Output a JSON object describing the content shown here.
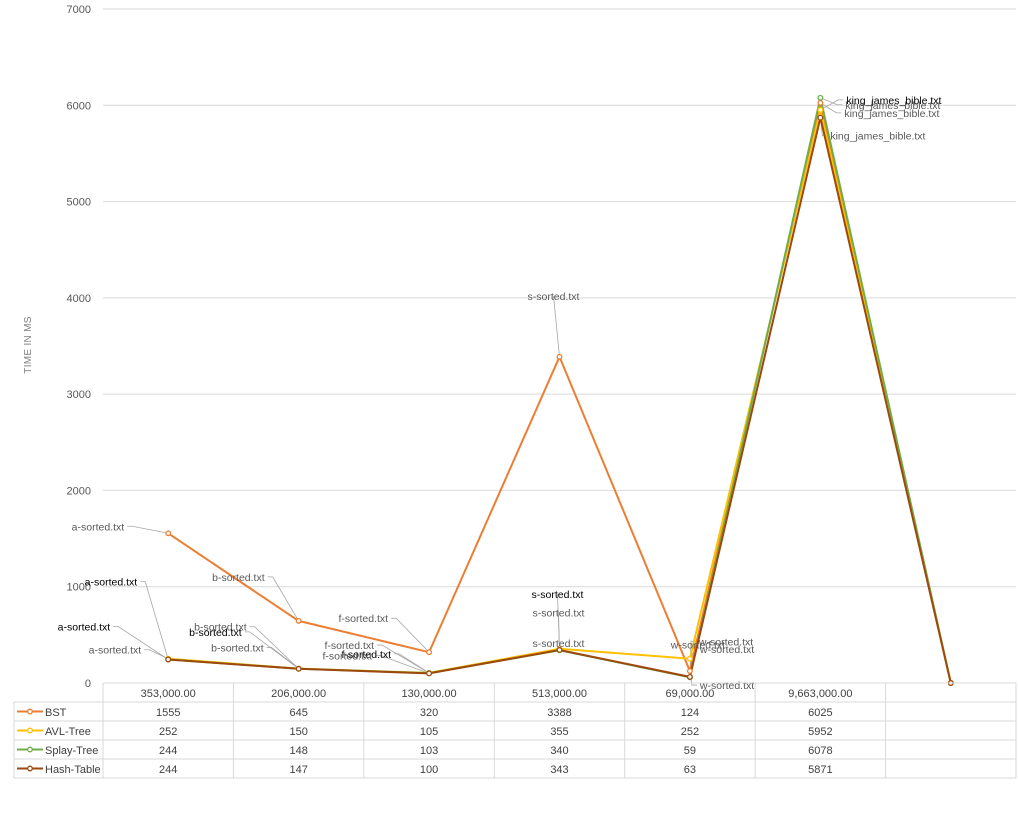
{
  "chart_data": {
    "type": "line",
    "title": "",
    "ylabel": "TIME IN MS",
    "xlabel": "",
    "ylim": [
      0,
      7000
    ],
    "yticks": [
      0,
      1000,
      2000,
      3000,
      4000,
      5000,
      6000,
      7000
    ],
    "grid": true,
    "legend": "data-table",
    "categories": [
      "353,000.00",
      "206,000.00",
      "130,000.00",
      "513,000.00",
      "69,000.00",
      "9,663,000.00",
      ""
    ],
    "series": [
      {
        "name": "BST",
        "color": "#ED7D31",
        "values": [
          1555,
          645,
          320,
          3388,
          124,
          6025,
          0
        ]
      },
      {
        "name": "AVL-Tree",
        "color": "#FFC000",
        "values": [
          252,
          150,
          105,
          355,
          252,
          5952,
          0
        ]
      },
      {
        "name": "Splay-Tree",
        "color": "#70AD47",
        "values": [
          244,
          148,
          103,
          340,
          59,
          6078,
          0
        ]
      },
      {
        "name": "Hash-Table",
        "color": "#9E480E",
        "values": [
          244,
          147,
          100,
          343,
          63,
          5871,
          0
        ]
      }
    ],
    "table": [
      [
        "1555",
        "645",
        "320",
        "3388",
        "124",
        "6025",
        ""
      ],
      [
        "252",
        "150",
        "105",
        "355",
        "252",
        "5952",
        ""
      ],
      [
        "244",
        "148",
        "103",
        "340",
        "59",
        "6078",
        ""
      ],
      [
        "244",
        "147",
        "100",
        "343",
        "63",
        "5871",
        ""
      ]
    ],
    "point_labels": [
      {
        "text": "a-sorted.txt",
        "series": 0,
        "cat": 0
      },
      {
        "text": "a-sorted.txt",
        "series": 1,
        "cat": 0
      },
      {
        "text": "a-sorted.txt",
        "series": 2,
        "cat": 0
      },
      {
        "text": "a-sorted.txt",
        "series": 3,
        "cat": 0
      },
      {
        "text": "b-sorted.txt",
        "series": 0,
        "cat": 1
      },
      {
        "text": "b-sorted.txt",
        "series": 1,
        "cat": 1
      },
      {
        "text": "b-sorted.txt",
        "series": 2,
        "cat": 1
      },
      {
        "text": "b-sorted.txt",
        "series": 3,
        "cat": 1
      },
      {
        "text": "f-sorted.txt",
        "series": 0,
        "cat": 2
      },
      {
        "text": "f-sorted.txt",
        "series": 1,
        "cat": 2
      },
      {
        "text": "f-sorted.txt",
        "series": 2,
        "cat": 2
      },
      {
        "text": "f-sorted.txt",
        "series": 3,
        "cat": 2
      },
      {
        "text": "s-sorted.txt",
        "series": 0,
        "cat": 3
      },
      {
        "text": "s-sorted.txt",
        "series": 1,
        "cat": 3
      },
      {
        "text": "s-sorted.txt",
        "series": 2,
        "cat": 3
      },
      {
        "text": "s-sorted.txt",
        "series": 3,
        "cat": 3
      },
      {
        "text": "w-sorted.txt",
        "series": 0,
        "cat": 4
      },
      {
        "text": "w-sorted.txt",
        "series": 1,
        "cat": 4
      },
      {
        "text": "w-sorted.txt",
        "series": 2,
        "cat": 4
      },
      {
        "text": "w-sorted.txt",
        "series": 3,
        "cat": 4
      },
      {
        "text": "king_james_bible.txt",
        "series": 0,
        "cat": 5
      },
      {
        "text": "king_james_bible.txt",
        "series": 1,
        "cat": 5
      },
      {
        "text": "king_james_bible.txt",
        "series": 2,
        "cat": 5
      },
      {
        "text": "king_james_bible.txt",
        "series": 3,
        "cat": 5
      }
    ]
  }
}
